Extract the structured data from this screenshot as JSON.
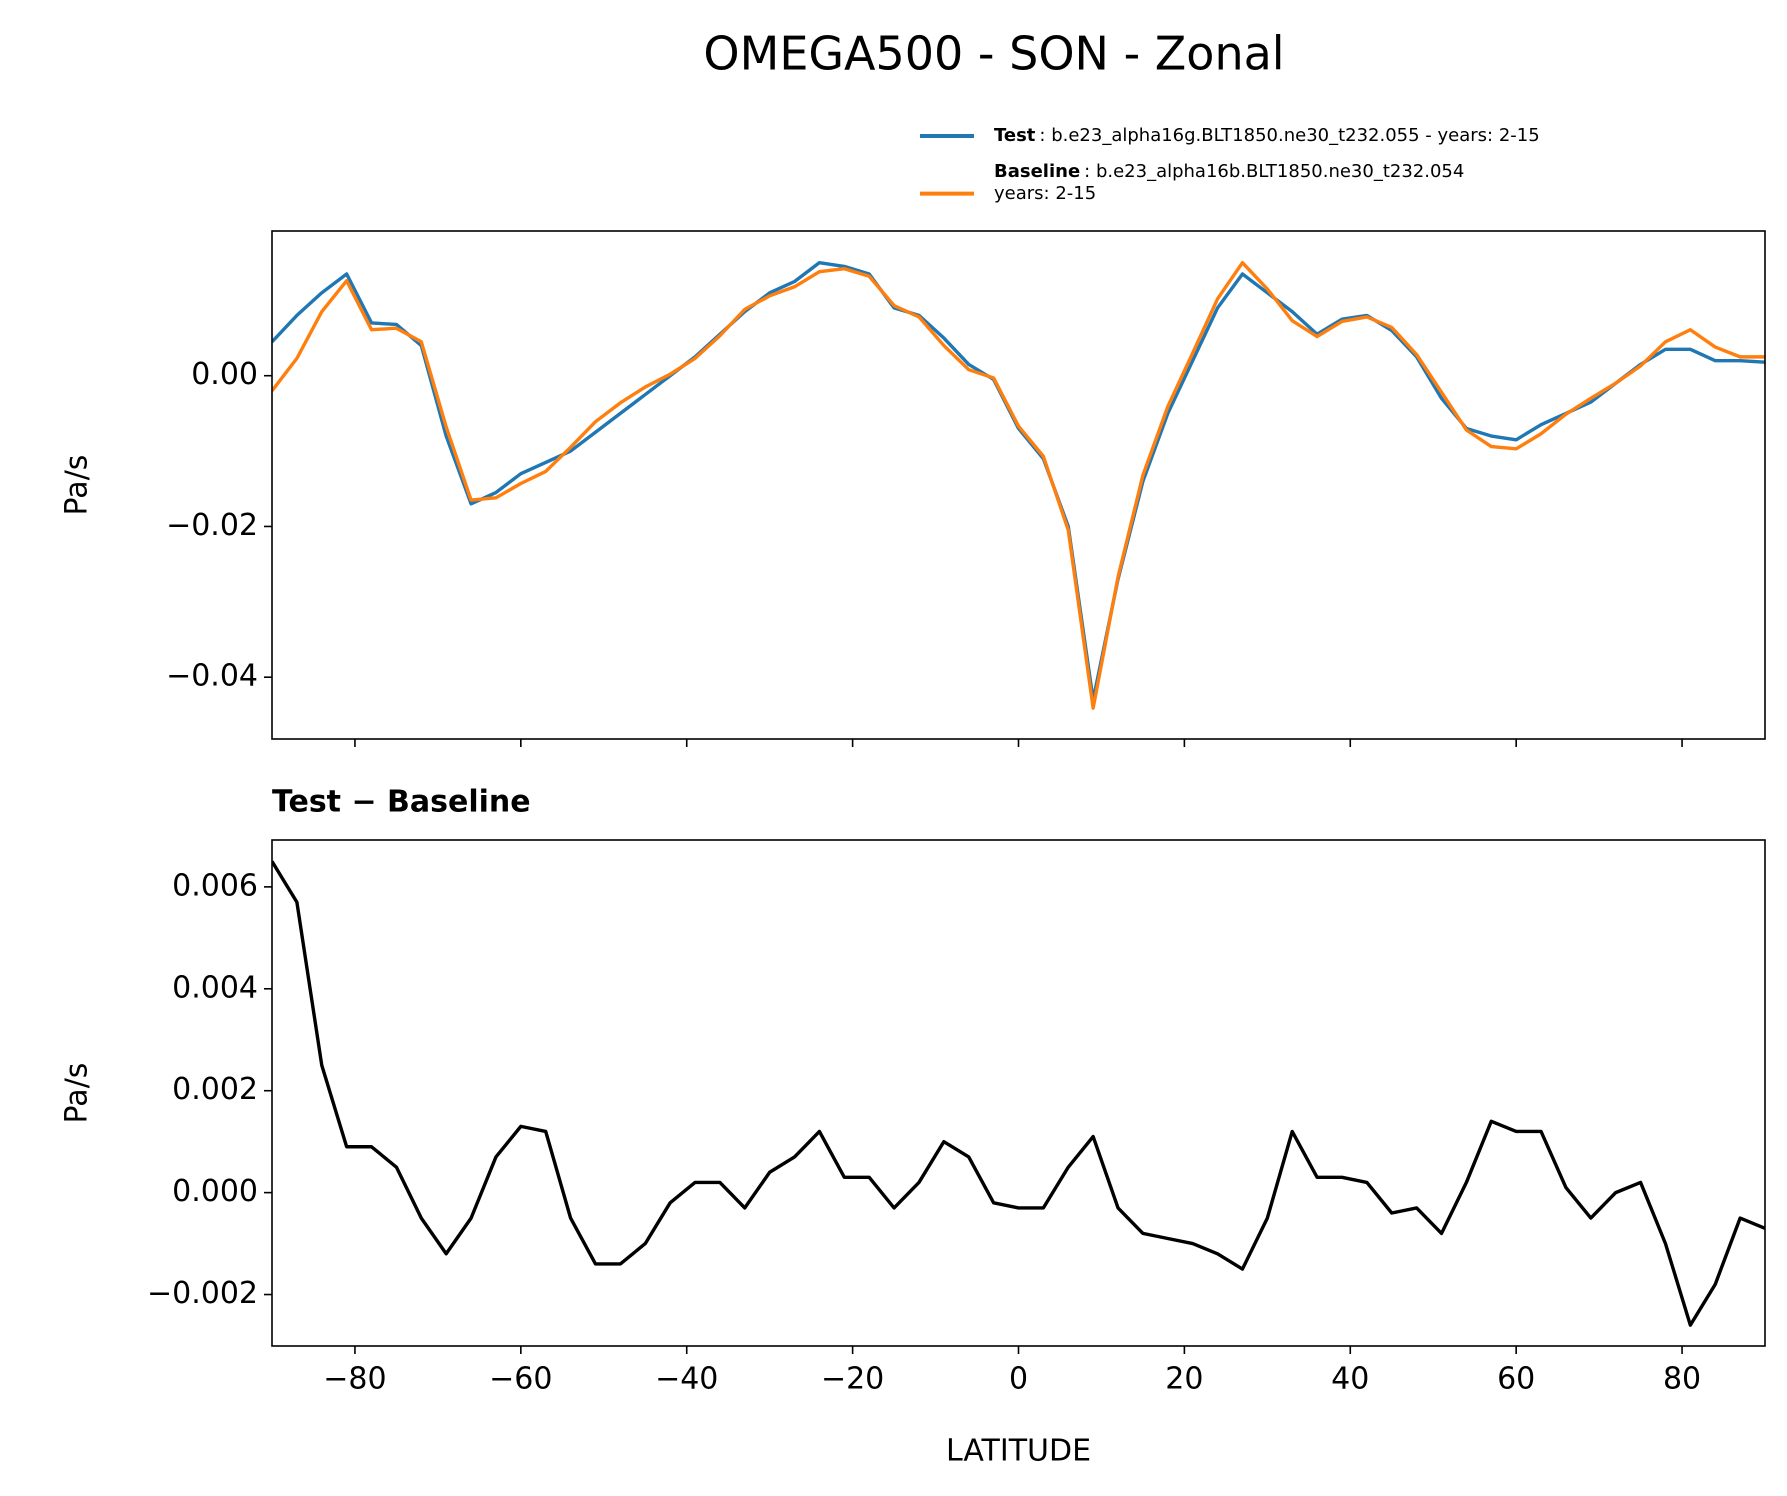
{
  "chart_data": [
    {
      "type": "line",
      "title": "OMEGA500 - SON - Zonal",
      "ylabel": "Pa/s",
      "x": [
        -90,
        -87,
        -84,
        -81,
        -78,
        -75,
        -72,
        -69,
        -66,
        -63,
        -60,
        -57,
        -54,
        -51,
        -48,
        -45,
        -42,
        -39,
        -36,
        -33,
        -30,
        -27,
        -24,
        -21,
        -18,
        -15,
        -12,
        -9,
        -6,
        -3,
        0,
        3,
        6,
        9,
        12,
        15,
        18,
        21,
        24,
        27,
        30,
        33,
        36,
        39,
        42,
        45,
        48,
        51,
        54,
        57,
        60,
        63,
        66,
        69,
        72,
        75,
        78,
        81,
        84,
        87,
        90
      ],
      "series": [
        {
          "name": "Test",
          "description": ": b.e23_alpha16g.BLT1850.ne30_t232.055 - years: 2-15",
          "color": "#1f77b4",
          "values": [
            0.0045,
            0.008,
            0.011,
            0.0135,
            0.007,
            0.0068,
            0.004,
            -0.008,
            -0.017,
            -0.0155,
            -0.013,
            -0.0115,
            -0.01,
            -0.0075,
            -0.005,
            -0.0025,
            0,
            0.0025,
            0.0055,
            0.0085,
            0.011,
            0.0125,
            0.015,
            0.0145,
            0.0135,
            0.009,
            0.008,
            0.005,
            0.0015,
            -0.0005,
            -0.007,
            -0.011,
            -0.02,
            -0.043,
            -0.027,
            -0.014,
            -0.005,
            0.002,
            0.009,
            0.0135,
            0.011,
            0.0085,
            0.0055,
            0.0075,
            0.008,
            0.006,
            0.0025,
            -0.003,
            -0.007,
            -0.008,
            -0.0085,
            -0.0065,
            -0.005,
            -0.0035,
            -0.001,
            0.0015,
            0.0035,
            0.0035,
            0.002,
            0.002,
            0.0018
          ]
        },
        {
          "name": "Baseline",
          "description": [
            ": b.e23_alpha16b.BLT1850.ne30_t232.054",
            "years: 2-15"
          ],
          "color": "#ff7f0e",
          "values": [
            -0.002,
            0.0023,
            0.0085,
            0.0126,
            0.0061,
            0.0063,
            0.0045,
            -0.0068,
            -0.0165,
            -0.0162,
            -0.0143,
            -0.0127,
            -0.0095,
            -0.0061,
            -0.0036,
            -0.0015,
            0.0002,
            0.0023,
            0.0053,
            0.0088,
            0.0106,
            0.0118,
            0.0138,
            0.0142,
            0.0132,
            0.0093,
            0.0078,
            0.004,
            0.0008,
            -0.0003,
            -0.0067,
            -0.0107,
            -0.0205,
            -0.0441,
            -0.0267,
            -0.0132,
            -0.0041,
            0.003,
            0.0102,
            0.015,
            0.0115,
            0.0073,
            0.0052,
            0.0072,
            0.0078,
            0.0064,
            0.0028,
            -0.0022,
            -0.0072,
            -0.0094,
            -0.0097,
            -0.0077,
            -0.0051,
            -0.003,
            -0.001,
            0.0013,
            0.0045,
            0.0061,
            0.0038,
            0.0025,
            0.0025
          ]
        }
      ],
      "xlim": [
        -90,
        90
      ],
      "xticks": [
        -80,
        -60,
        -40,
        -20,
        0,
        20,
        40,
        60,
        80
      ],
      "xticklabels": false,
      "ylim": [
        -0.0482,
        0.0192
      ],
      "yticks": [
        {
          "value": 0,
          "label": "0.00"
        },
        {
          "value": -0.02,
          "label": "−0.02"
        },
        {
          "value": -0.04,
          "label": "−0.04"
        }
      ],
      "legend": "upper right"
    },
    {
      "type": "line",
      "title": "Test − Baseline",
      "ylabel": "Pa/s",
      "xlabel": "LATITUDE",
      "x": [
        -90,
        -87,
        -84,
        -81,
        -78,
        -75,
        -72,
        -69,
        -66,
        -63,
        -60,
        -57,
        -54,
        -51,
        -48,
        -45,
        -42,
        -39,
        -36,
        -33,
        -30,
        -27,
        -24,
        -21,
        -18,
        -15,
        -12,
        -9,
        -6,
        -3,
        0,
        3,
        6,
        9,
        12,
        15,
        18,
        21,
        24,
        27,
        30,
        33,
        36,
        39,
        42,
        45,
        48,
        51,
        54,
        57,
        60,
        63,
        66,
        69,
        72,
        75,
        78,
        81,
        84,
        87,
        90
      ],
      "series": [
        {
          "color": "#000000",
          "values": [
            0.0065,
            0.0057,
            0.0025,
            0.0009,
            0.0009,
            0.0005,
            -0.0005,
            -0.0012,
            -0.0005,
            0.0007,
            0.0013,
            0.0012,
            -0.0005,
            -0.0014,
            -0.0014,
            -0.001,
            -0.0002,
            0.0002,
            0.0002,
            -0.0003,
            0.0004,
            0.0007,
            0.0012,
            0.0003,
            0.0003,
            -0.0003,
            0.0002,
            0.001,
            0.0007,
            -0.0002,
            -0.0003,
            -0.0003,
            0.0005,
            0.0011,
            -0.0003,
            -0.0008,
            -0.0009,
            -0.001,
            -0.0012,
            -0.0015,
            -0.0005,
            0.0012,
            0.0003,
            0.0003,
            0.0002,
            -0.0004,
            -0.0003,
            -0.0008,
            0.0002,
            0.0014,
            0.0012,
            0.0012,
            0.0001,
            -0.0005,
            0,
            0.0002,
            -0.001,
            -0.0026,
            -0.0018,
            -0.0005,
            -0.0007
          ]
        }
      ],
      "xlim": [
        -90,
        90
      ],
      "xticks": [
        {
          "value": -80,
          "label": "−80"
        },
        {
          "value": -60,
          "label": "−60"
        },
        {
          "value": -40,
          "label": "−40"
        },
        {
          "value": -20,
          "label": "−20"
        },
        0,
        20,
        40,
        60,
        80
      ],
      "ylim": [
        -0.00301,
        0.00692
      ],
      "yticks": [
        {
          "value": 0.006,
          "label": "0.006"
        },
        {
          "value": 0.004,
          "label": "0.004"
        },
        {
          "value": 0.002,
          "label": "0.002"
        },
        {
          "value": 0,
          "label": "0.000"
        },
        {
          "value": -0.002,
          "label": "−0.002"
        }
      ]
    }
  ]
}
